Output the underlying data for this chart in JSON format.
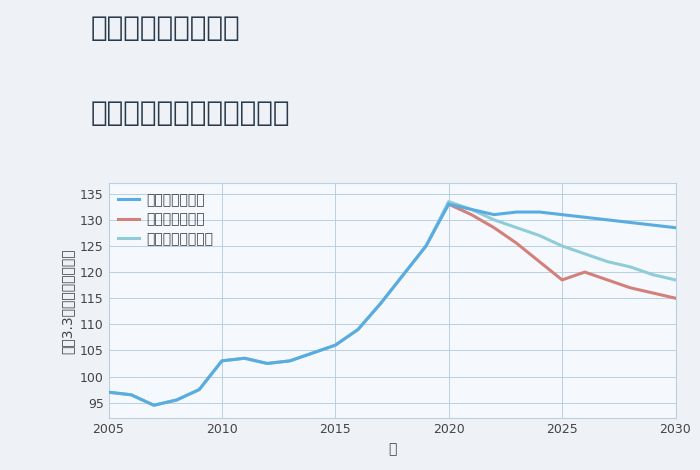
{
  "title_line1": "兵庫県姫路市手柄の",
  "title_line2": "中古マンションの価格推移",
  "xlabel": "年",
  "ylabel": "坪（3.3㎡）単価（万円）",
  "background_color": "#eef2f7",
  "plot_bg_color": "#f5f9fd",
  "grid_color": "#b8d0e0",
  "xlim": [
    2005,
    2030
  ],
  "ylim": [
    92,
    137
  ],
  "yticks": [
    95,
    100,
    105,
    110,
    115,
    120,
    125,
    130,
    135
  ],
  "xticks": [
    2005,
    2010,
    2015,
    2020,
    2025,
    2030
  ],
  "good_scenario": {
    "label": "グッドシナリオ",
    "color": "#5aace0",
    "x": [
      2005,
      2006,
      2007,
      2008,
      2009,
      2010,
      2011,
      2012,
      2013,
      2014,
      2015,
      2016,
      2017,
      2018,
      2019,
      2020,
      2021,
      2022,
      2023,
      2024,
      2025,
      2026,
      2027,
      2028,
      2029,
      2030
    ],
    "y": [
      97.0,
      96.5,
      94.5,
      95.5,
      97.5,
      103.0,
      103.5,
      102.5,
      103.0,
      104.5,
      106.0,
      109.0,
      114.0,
      119.5,
      125.0,
      133.0,
      132.0,
      131.0,
      131.5,
      131.5,
      131.0,
      130.5,
      130.0,
      129.5,
      129.0,
      128.5
    ]
  },
  "bad_scenario": {
    "label": "バッドシナリオ",
    "color": "#d4807a",
    "x": [
      2020,
      2021,
      2022,
      2023,
      2024,
      2025,
      2026,
      2027,
      2028,
      2029,
      2030
    ],
    "y": [
      133.0,
      131.0,
      128.5,
      125.5,
      122.0,
      118.5,
      120.0,
      118.5,
      117.0,
      116.0,
      115.0
    ]
  },
  "normal_scenario": {
    "label": "ノーマルシナリオ",
    "color": "#90ccd8",
    "x": [
      2005,
      2006,
      2007,
      2008,
      2009,
      2010,
      2011,
      2012,
      2013,
      2014,
      2015,
      2016,
      2017,
      2018,
      2019,
      2020,
      2021,
      2022,
      2023,
      2024,
      2025,
      2026,
      2027,
      2028,
      2029,
      2030
    ],
    "y": [
      97.0,
      96.5,
      94.5,
      95.5,
      97.5,
      103.0,
      103.5,
      102.5,
      103.0,
      104.5,
      106.0,
      109.0,
      114.0,
      119.5,
      125.0,
      133.5,
      132.0,
      130.0,
      128.5,
      127.0,
      125.0,
      123.5,
      122.0,
      121.0,
      119.5,
      118.5
    ]
  },
  "title_fontsize": 20,
  "legend_fontsize": 10,
  "axis_fontsize": 10,
  "tick_fontsize": 9
}
